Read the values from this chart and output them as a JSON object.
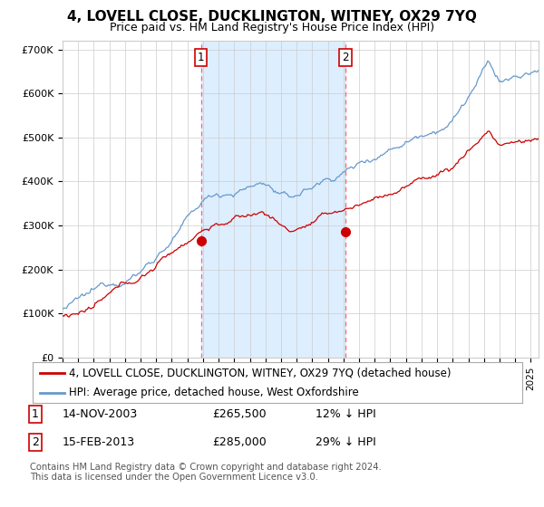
{
  "title": "4, LOVELL CLOSE, DUCKLINGTON, WITNEY, OX29 7YQ",
  "subtitle": "Price paid vs. HM Land Registry's House Price Index (HPI)",
  "ylabel_ticks": [
    "£0",
    "£100K",
    "£200K",
    "£300K",
    "£400K",
    "£500K",
    "£600K",
    "£700K"
  ],
  "ylim": [
    0,
    720000
  ],
  "xlim_start": 1995.0,
  "xlim_end": 2025.5,
  "sale1_date": 2003.87,
  "sale1_price": 265500,
  "sale2_date": 2013.12,
  "sale2_price": 285000,
  "legend_line1": "4, LOVELL CLOSE, DUCKLINGTON, WITNEY, OX29 7YQ (detached house)",
  "legend_line2": "HPI: Average price, detached house, West Oxfordshire",
  "footer": "Contains HM Land Registry data © Crown copyright and database right 2024.\nThis data is licensed under the Open Government Licence v3.0.",
  "line_color_price": "#cc0000",
  "line_color_hpi": "#6699cc",
  "shade_color": "#ddeeff",
  "marker_color": "#cc0000",
  "vline_color": "#ff6666",
  "background_color": "#ffffff",
  "plot_bg_color": "#ffffff",
  "grid_color": "#cccccc",
  "title_fontsize": 11,
  "subtitle_fontsize": 9,
  "tick_fontsize": 8,
  "legend_fontsize": 8.5,
  "table_fontsize": 9,
  "footer_fontsize": 7.2
}
